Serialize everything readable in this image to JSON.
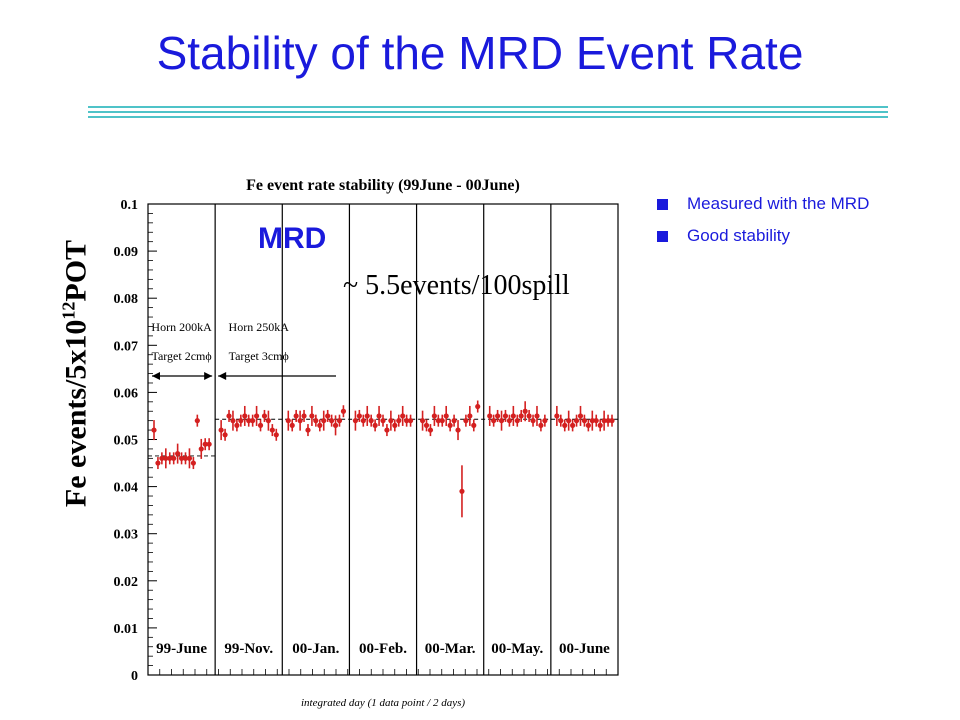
{
  "slide": {
    "title": "Stability of the MRD Event Rate",
    "bullets": [
      "Measured with the MRD",
      "Good stability"
    ],
    "colors": {
      "title": "#1a1adc",
      "rule": "#4fc3c8",
      "data": "#d42020"
    }
  },
  "annotations": {
    "ylabel_main": "Fe events/5x10",
    "ylabel_exp": "12",
    "ylabel_tail": "POT",
    "mrd": "MRD",
    "rate": "~ 5.5events/100spill",
    "horn1_line1": "Horn 200kA",
    "horn1_line2": "Target 2cmϕ",
    "horn2_line1": "Horn 250kA",
    "horn2_line2": "Target 3cmϕ"
  },
  "chart_data": {
    "type": "scatter",
    "title": "Fe event rate stability (99June - 00June)",
    "xlabel": "integrated day (1 data point / 2 days)",
    "ylabel": "",
    "ylim": [
      0,
      0.1
    ],
    "yticks": [
      "0",
      "0.01",
      "0.02",
      "0.03",
      "0.04",
      "0.05",
      "0.06",
      "0.07",
      "0.08",
      "0.09",
      "0.1"
    ],
    "periods": [
      "99-June",
      "99-Nov.",
      "00-Jan.",
      "00-Feb.",
      "00-Mar.",
      "00-May.",
      "00-June"
    ],
    "reference_levels": [
      {
        "label": "Horn 200kA, Target 2cmϕ",
        "value": 0.0465
      },
      {
        "label": "Horn 250kA, Target 3cmϕ",
        "value": 0.0543
      }
    ],
    "series": [
      {
        "period": "99-June",
        "values": [
          0.052,
          0.045,
          0.046,
          0.046,
          0.046,
          0.046,
          0.047,
          0.046,
          0.046,
          0.046,
          0.045,
          0.054,
          0.048,
          0.049,
          0.049
        ]
      },
      {
        "period": "99-Nov.",
        "values": [
          0.052,
          0.051,
          0.055,
          0.054,
          0.053,
          0.054,
          0.055,
          0.054,
          0.054,
          0.055,
          0.053,
          0.055,
          0.054,
          0.052,
          0.051
        ]
      },
      {
        "period": "00-Jan.",
        "values": [
          0.054,
          0.053,
          0.055,
          0.054,
          0.055,
          0.052,
          0.055,
          0.054,
          0.053,
          0.054,
          0.055,
          0.054,
          0.053,
          0.054,
          0.056
        ]
      },
      {
        "period": "00-Feb.",
        "values": [
          0.054,
          0.055,
          0.054,
          0.055,
          0.054,
          0.053,
          0.055,
          0.054,
          0.052,
          0.054,
          0.053,
          0.054,
          0.055,
          0.054,
          0.054
        ]
      },
      {
        "period": "00-Mar.",
        "values": [
          0.054,
          0.053,
          0.052,
          0.055,
          0.054,
          0.054,
          0.055,
          0.053,
          0.054,
          0.052,
          0.039,
          0.054,
          0.055,
          0.053,
          0.057
        ]
      },
      {
        "period": "00-May.",
        "values": [
          0.055,
          0.054,
          0.055,
          0.054,
          0.055,
          0.054,
          0.055,
          0.054,
          0.055,
          0.056,
          0.055,
          0.054,
          0.055,
          0.053,
          0.054
        ]
      },
      {
        "period": "00-June",
        "values": [
          0.055,
          0.054,
          0.053,
          0.054,
          0.053,
          0.054,
          0.055,
          0.054,
          0.053,
          0.054,
          0.054,
          0.053,
          0.054,
          0.054,
          0.054
        ]
      }
    ],
    "grid": false,
    "legend": "none"
  }
}
